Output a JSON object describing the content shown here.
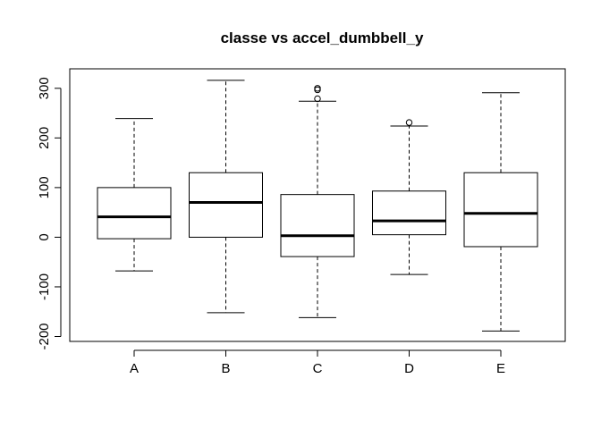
{
  "chart_data": {
    "type": "boxplot",
    "title": "classe vs accel_dumbbell_y",
    "xlabel": "",
    "ylabel": "",
    "ylim": [
      -210,
      320
    ],
    "y_ticks": [
      -200,
      -100,
      0,
      100,
      200,
      300
    ],
    "grid": false,
    "legend": "none",
    "categories": [
      "A",
      "B",
      "C",
      "D",
      "E"
    ],
    "boxes": [
      {
        "category": "A",
        "whisker_low": -68,
        "q1": -3,
        "median": 41,
        "q3": 100,
        "whisker_high": 239,
        "outliers": []
      },
      {
        "category": "B",
        "whisker_low": -152,
        "q1": 0,
        "median": 70,
        "q3": 130,
        "whisker_high": 316,
        "outliers": []
      },
      {
        "category": "C",
        "whisker_low": -162,
        "q1": -39,
        "median": 3,
        "q3": 86,
        "whisker_high": 274,
        "outliers": [
          279,
          297,
          300
        ]
      },
      {
        "category": "D",
        "whisker_low": -75,
        "q1": 5,
        "median": 33,
        "q3": 93,
        "whisker_high": 224,
        "outliers": [
          231
        ]
      },
      {
        "category": "E",
        "whisker_low": -189,
        "q1": -19,
        "median": 48,
        "q3": 130,
        "whisker_high": 291,
        "outliers": []
      }
    ]
  }
}
